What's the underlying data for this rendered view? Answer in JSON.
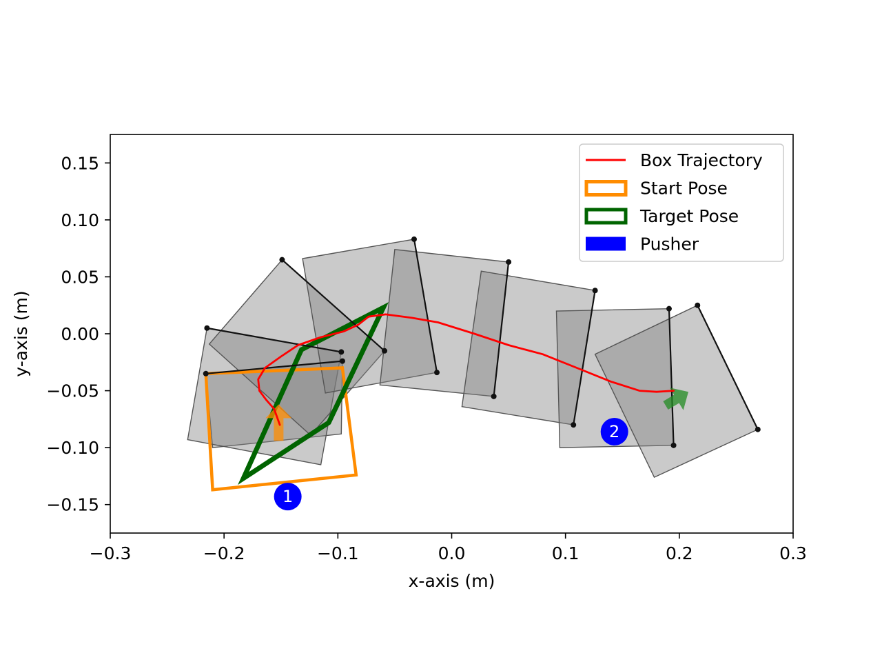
{
  "chart_data": {
    "type": "scatter",
    "xlabel": "x-axis (m)",
    "ylabel": "y-axis (m)",
    "xlim": [
      -0.3,
      0.3
    ],
    "ylim": [
      -0.175,
      0.175
    ],
    "xticks": [
      -0.3,
      -0.2,
      -0.1,
      0.0,
      0.1,
      0.2,
      0.3
    ],
    "xtick_labels": [
      "−0.3",
      "−0.2",
      "−0.1",
      "0.0",
      "0.1",
      "0.2",
      "0.3"
    ],
    "yticks": [
      -0.15,
      -0.1,
      -0.05,
      0.0,
      0.05,
      0.1,
      0.15
    ],
    "ytick_labels": [
      "−0.15",
      "−0.10",
      "−0.05",
      "0.00",
      "0.05",
      "0.10",
      "0.15"
    ],
    "grid": false,
    "legend_position": "top-right",
    "legend": [
      {
        "label": "Box Trajectory",
        "kind": "line",
        "color": "#ff0000"
      },
      {
        "label": "Start Pose",
        "kind": "rect-outline",
        "color": "#ff8c00"
      },
      {
        "label": "Target Pose",
        "kind": "rect-outline",
        "color": "#006400"
      },
      {
        "label": "Pusher",
        "kind": "rect-fill",
        "color": "#0000ff"
      }
    ],
    "colors": {
      "trajectory": "#ff0000",
      "start": "#ff8c00",
      "target": "#006400",
      "pusher": "#0000ff",
      "box_fill": "#808080",
      "contact": "#111111"
    },
    "trajectory": [
      [
        -0.151,
        -0.08
      ],
      [
        -0.156,
        -0.066
      ],
      [
        -0.163,
        -0.058
      ],
      [
        -0.169,
        -0.05
      ],
      [
        -0.17,
        -0.04
      ],
      [
        -0.164,
        -0.03
      ],
      [
        -0.15,
        -0.02
      ],
      [
        -0.135,
        -0.01
      ],
      [
        -0.115,
        -0.003
      ],
      [
        -0.095,
        0.002
      ],
      [
        -0.082,
        0.008
      ],
      [
        -0.073,
        0.015
      ],
      [
        -0.058,
        0.017
      ],
      [
        -0.035,
        0.014
      ],
      [
        -0.012,
        0.01
      ],
      [
        0.02,
        0.0
      ],
      [
        0.05,
        -0.01
      ],
      [
        0.08,
        -0.018
      ],
      [
        0.11,
        -0.03
      ],
      [
        0.14,
        -0.042
      ],
      [
        0.165,
        -0.05
      ],
      [
        0.18,
        -0.051
      ],
      [
        0.195,
        -0.05
      ]
    ],
    "start_pose": [
      [
        -0.21,
        -0.137
      ],
      [
        -0.084,
        -0.124
      ],
      [
        -0.096,
        -0.03
      ],
      [
        -0.216,
        -0.035
      ]
    ],
    "target_pose": [
      [
        -0.183,
        -0.127
      ],
      [
        -0.108,
        -0.078
      ],
      [
        -0.06,
        0.023
      ],
      [
        -0.132,
        -0.014
      ]
    ],
    "box_poses": [
      [
        [
          -0.216,
          -0.035
        ],
        [
          -0.096,
          -0.024
        ],
        [
          -0.097,
          -0.088
        ],
        [
          -0.21,
          -0.1
        ]
      ],
      [
        [
          -0.215,
          0.005
        ],
        [
          -0.097,
          -0.016
        ],
        [
          -0.115,
          -0.115
        ],
        [
          -0.232,
          -0.093
        ]
      ],
      [
        [
          -0.149,
          0.065
        ],
        [
          -0.059,
          -0.015
        ],
        [
          -0.124,
          -0.089
        ],
        [
          -0.213,
          -0.009
        ]
      ],
      [
        [
          -0.033,
          0.083
        ],
        [
          -0.013,
          -0.034
        ],
        [
          -0.111,
          -0.052
        ],
        [
          -0.131,
          0.066
        ]
      ],
      [
        [
          0.05,
          0.063
        ],
        [
          0.037,
          -0.055
        ],
        [
          -0.063,
          -0.045
        ],
        [
          -0.05,
          0.074
        ]
      ],
      [
        [
          0.126,
          0.038
        ],
        [
          0.107,
          -0.08
        ],
        [
          0.009,
          -0.064
        ],
        [
          0.026,
          0.055
        ]
      ],
      [
        [
          0.191,
          0.022
        ],
        [
          0.195,
          -0.098
        ],
        [
          0.095,
          -0.1
        ],
        [
          0.092,
          0.02
        ]
      ],
      [
        [
          0.216,
          0.025
        ],
        [
          0.269,
          -0.084
        ],
        [
          0.178,
          -0.126
        ],
        [
          0.126,
          -0.018
        ]
      ]
    ],
    "contact_edges": [
      [
        [
          -0.216,
          -0.035
        ],
        [
          -0.096,
          -0.024
        ]
      ],
      [
        [
          -0.215,
          0.005
        ],
        [
          -0.097,
          -0.016
        ]
      ],
      [
        [
          -0.149,
          0.065
        ],
        [
          -0.059,
          -0.015
        ]
      ],
      [
        [
          -0.033,
          0.083
        ],
        [
          -0.013,
          -0.034
        ]
      ],
      [
        [
          0.05,
          0.063
        ],
        [
          0.037,
          -0.055
        ]
      ],
      [
        [
          0.126,
          0.038
        ],
        [
          0.107,
          -0.08
        ]
      ],
      [
        [
          0.191,
          0.022
        ],
        [
          0.195,
          -0.098
        ]
      ],
      [
        [
          0.216,
          0.025
        ],
        [
          0.269,
          -0.084
        ]
      ]
    ],
    "start_arrow": {
      "x": -0.152,
      "y": -0.094,
      "dx": 0.0,
      "dy": 0.032,
      "color": "#ff8c00"
    },
    "target_arrow": {
      "x": 0.188,
      "y": -0.063,
      "dx": 0.02,
      "dy": 0.012,
      "color": "#228b22"
    },
    "pushers": [
      {
        "label": "1",
        "x": -0.144,
        "y": -0.143
      },
      {
        "label": "2",
        "x": 0.143,
        "y": -0.086
      }
    ]
  }
}
